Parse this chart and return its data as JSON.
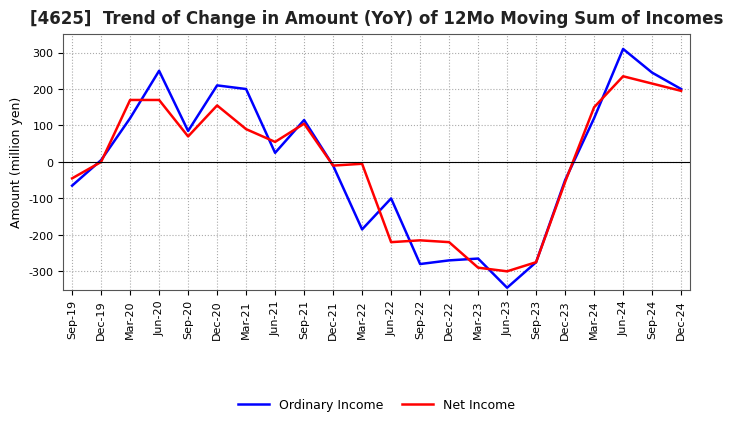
{
  "title": "[4625]  Trend of Change in Amount (YoY) of 12Mo Moving Sum of Incomes",
  "ylabel": "Amount (million yen)",
  "x_labels": [
    "Sep-19",
    "Dec-19",
    "Mar-20",
    "Jun-20",
    "Sep-20",
    "Dec-20",
    "Mar-21",
    "Jun-21",
    "Sep-21",
    "Dec-21",
    "Mar-22",
    "Jun-22",
    "Sep-22",
    "Dec-22",
    "Mar-23",
    "Jun-23",
    "Sep-23",
    "Dec-23",
    "Mar-24",
    "Jun-24",
    "Sep-24",
    "Dec-24"
  ],
  "ordinary_income": [
    -65,
    5,
    120,
    250,
    85,
    210,
    200,
    25,
    115,
    -10,
    -185,
    -100,
    -280,
    -270,
    -265,
    -345,
    -275,
    -50,
    120,
    310,
    245,
    200
  ],
  "net_income": [
    -45,
    0,
    170,
    170,
    70,
    155,
    90,
    55,
    105,
    -10,
    -5,
    -220,
    -215,
    -220,
    -290,
    -300,
    -275,
    -55,
    150,
    235,
    215,
    195
  ],
  "ordinary_income_color": "#0000FF",
  "net_income_color": "#FF0000",
  "ylim": [
    -350,
    350
  ],
  "yticks": [
    -300,
    -200,
    -100,
    0,
    100,
    200,
    300
  ],
  "background_color": "#ffffff",
  "grid_color": "#aaaaaa",
  "title_fontsize": 12,
  "axis_label_fontsize": 9,
  "tick_fontsize": 8,
  "legend_fontsize": 9,
  "line_width": 1.8
}
